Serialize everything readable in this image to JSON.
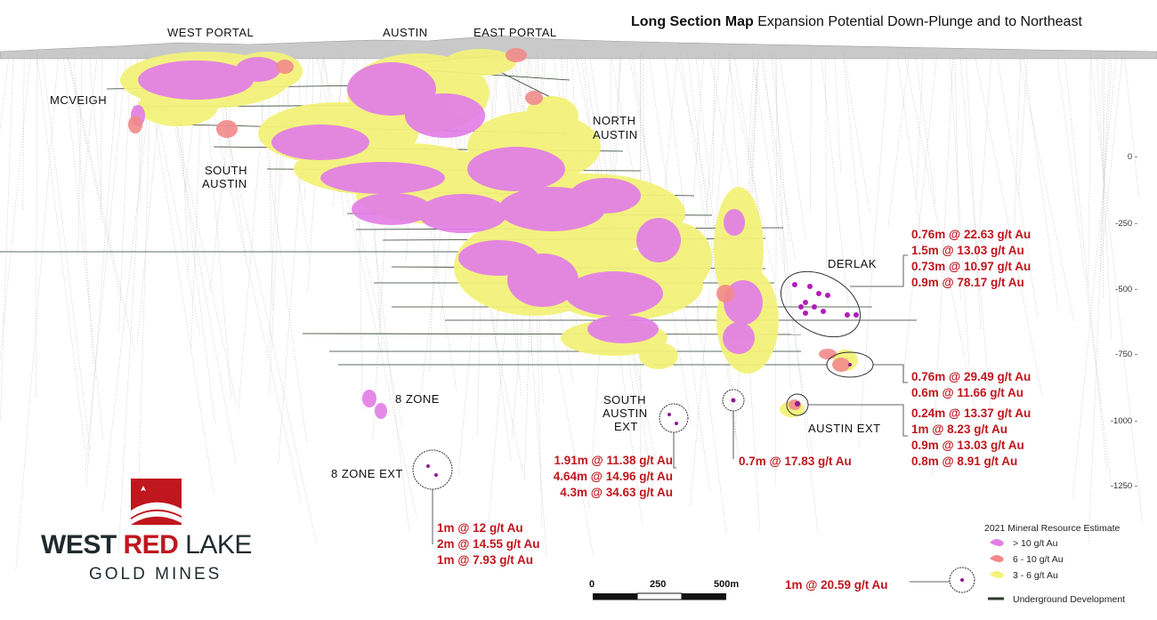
{
  "title": {
    "bold": "Long Section Map",
    "rest": " Expansion Potential Down-Plunge and to Northeast"
  },
  "zones": {
    "west_portal": "WEST PORTAL",
    "austin": "AUSTIN",
    "east_portal": "EAST PORTAL",
    "mcveigh": "MCVEIGH",
    "north_austin_1": "NORTH",
    "north_austin_2": "AUSTIN",
    "south_austin_1": "SOUTH",
    "south_austin_2": "AUSTIN",
    "derlak": "DERLAK",
    "eight_zone": "8 ZONE",
    "south_austin_ext_1": "SOUTH",
    "south_austin_ext_2": "AUSTIN",
    "south_austin_ext_3": "EXT",
    "austin_ext": "AUSTIN EXT",
    "eight_zone_ext": "8 ZONE EXT"
  },
  "depth_ticks": [
    "0 -",
    "-250 -",
    "-500 -",
    "-750 -",
    "-1000 -",
    "-1250 -"
  ],
  "intercepts": {
    "derlak": [
      "0.76m @ 22.63 g/t Au",
      "1.5m @ 13.03 g/t Au",
      "0.73m @ 10.97 g/t Au",
      "0.9m @ 78.17 g/t Au"
    ],
    "austin_ext_upper": [
      "0.76m @ 29.49 g/t Au",
      "0.6m @ 11.66 g/t Au"
    ],
    "austin_ext_lower": [
      "0.24m @ 13.37 g/t Au",
      "1m @ 8.23 g/t Au",
      "0.9m @ 13.03 g/t Au",
      "0.8m @ 8.91 g/t Au"
    ],
    "middle": [
      "0.7m @ 17.83 g/t Au"
    ],
    "south_austin_ext": [
      "1.91m @ 11.38 g/t Au",
      "4.64m @ 14.96 g/t Au",
      "4.3m @ 34.63 g/t Au"
    ],
    "eight_zone_ext": [
      "1m @ 12 g/t Au",
      "2m @ 14.55 g/t Au",
      "1m @ 7.93 g/t Au"
    ],
    "far_east": [
      "1m @ 20.59 g/t Au"
    ]
  },
  "scale_bar": {
    "labels": [
      "0",
      "250",
      "500m"
    ]
  },
  "legend": {
    "title": "2021 Mineral Resource Estimate",
    "items": [
      {
        "label": "> 10 g/t Au",
        "color": "#e27fe6"
      },
      {
        "label": "6 - 10 g/t Au",
        "color": "#f28a8a"
      },
      {
        "label": "3 - 6 g/t Au",
        "color": "#f3f27a"
      }
    ],
    "development": {
      "label": "Underground Development",
      "color": "#2e3b2c"
    }
  },
  "logo": {
    "line1_a": "WEST ",
    "line1_b": "RED",
    "line1_c": " LAKE",
    "line2": "GOLD MINES"
  },
  "colors": {
    "high_grade": "#e27fe6",
    "mid_grade": "#f28a8a",
    "low_grade": "#f3f27a",
    "intercept_text": "#c0161e",
    "brand_red": "#c0161e",
    "brand_dark": "#1f2a2e"
  }
}
